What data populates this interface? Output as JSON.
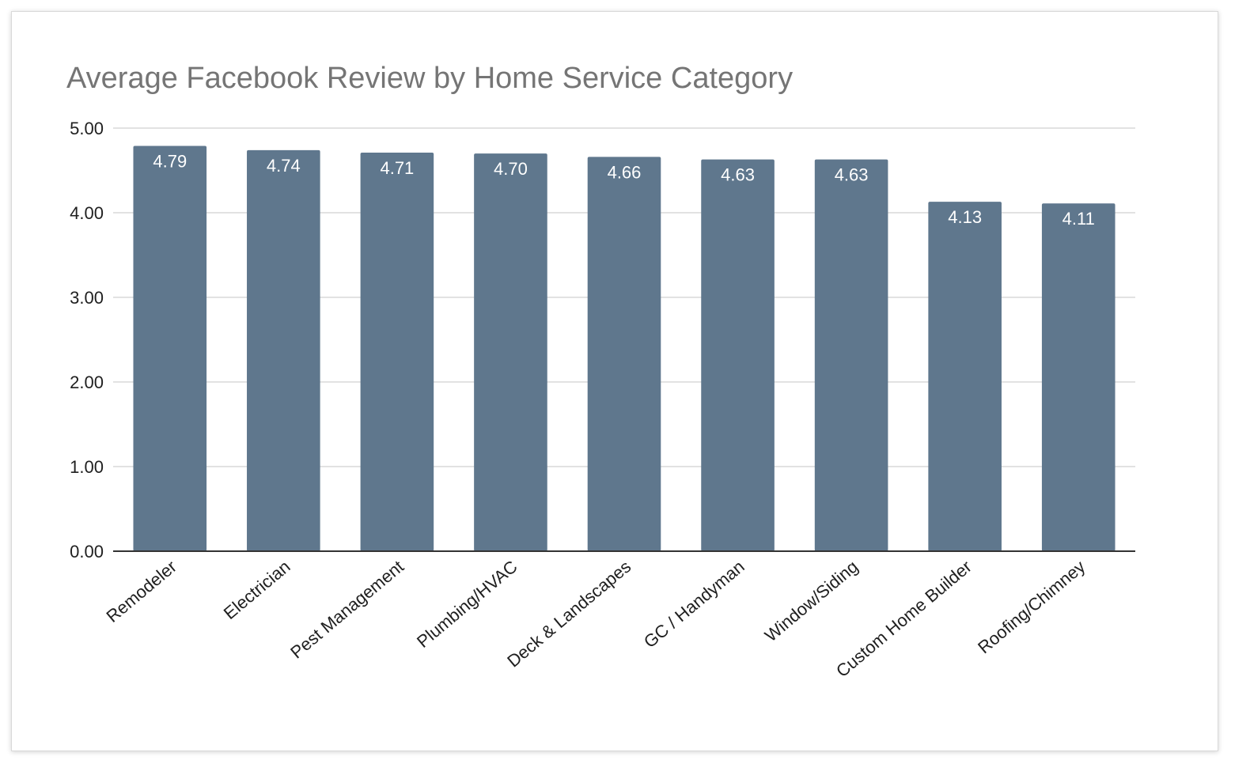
{
  "chart_data": {
    "type": "bar",
    "title": "Average Facebook Review by Home Service Category",
    "xlabel": "",
    "ylabel": "",
    "categories": [
      "Remodeler",
      "Electrician",
      "Pest Management",
      "Plumbing/HVAC",
      "Deck & Landscapes",
      "GC / Handyman",
      "Window/Siding",
      "Custom Home Builder",
      "Roofing/Chimney"
    ],
    "values": [
      4.79,
      4.74,
      4.71,
      4.7,
      4.66,
      4.63,
      4.63,
      4.13,
      4.11
    ],
    "value_labels": [
      "4.79",
      "4.74",
      "4.71",
      "4.70",
      "4.66",
      "4.63",
      "4.63",
      "4.13",
      "4.11"
    ],
    "ylim": [
      0,
      5
    ],
    "yticks": [
      "0.00",
      "1.00",
      "2.00",
      "3.00",
      "4.00",
      "5.00"
    ],
    "grid": true,
    "legend": "none",
    "colors": {
      "bar": "#5f778d",
      "grid": "#d9d9d9",
      "axis": "#333333",
      "title": "#757575",
      "value_label": "#ffffff"
    }
  }
}
